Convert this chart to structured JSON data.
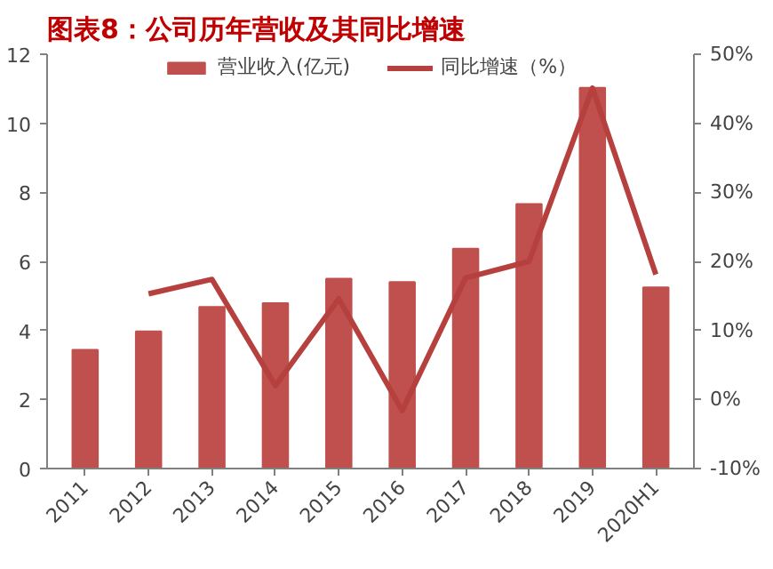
{
  "chart_data": {
    "type": "bar",
    "title": "图表8：公司历年营收及其同比增速",
    "categories": [
      "2011",
      "2012",
      "2013",
      "2014",
      "2015",
      "2016",
      "2017",
      "2018",
      "2019",
      "2020H1"
    ],
    "series": [
      {
        "name": "营业收入(亿元)",
        "color": "#c0504d",
        "values": [
          3.44,
          3.97,
          4.68,
          4.79,
          5.5,
          5.4,
          6.37,
          7.66,
          11.03,
          5.25
        ]
      },
      {
        "name": "同比增速（%）",
        "color": "#b5403d",
        "type": "line",
        "axis": "y2",
        "values": [
          null,
          15.3,
          17.4,
          2.0,
          14.6,
          -1.6,
          17.6,
          20.0,
          45.1,
          18.1
        ]
      }
    ],
    "ylim": [
      0,
      12
    ],
    "yticks": [
      0,
      2,
      4,
      6,
      8,
      10,
      12
    ],
    "y2lim": [
      -10,
      50
    ],
    "y2ticks": [
      {
        "value": -10,
        "label": "-10%"
      },
      {
        "value": 0,
        "label": "0%"
      },
      {
        "value": 10,
        "label": "10%"
      },
      {
        "value": 20,
        "label": "20%"
      },
      {
        "value": 30,
        "label": "30%"
      },
      {
        "value": 40,
        "label": "40%"
      },
      {
        "value": 50,
        "label": "50%"
      }
    ],
    "grid": false,
    "legend": "top",
    "marker": "none",
    "line_style": "solid"
  }
}
